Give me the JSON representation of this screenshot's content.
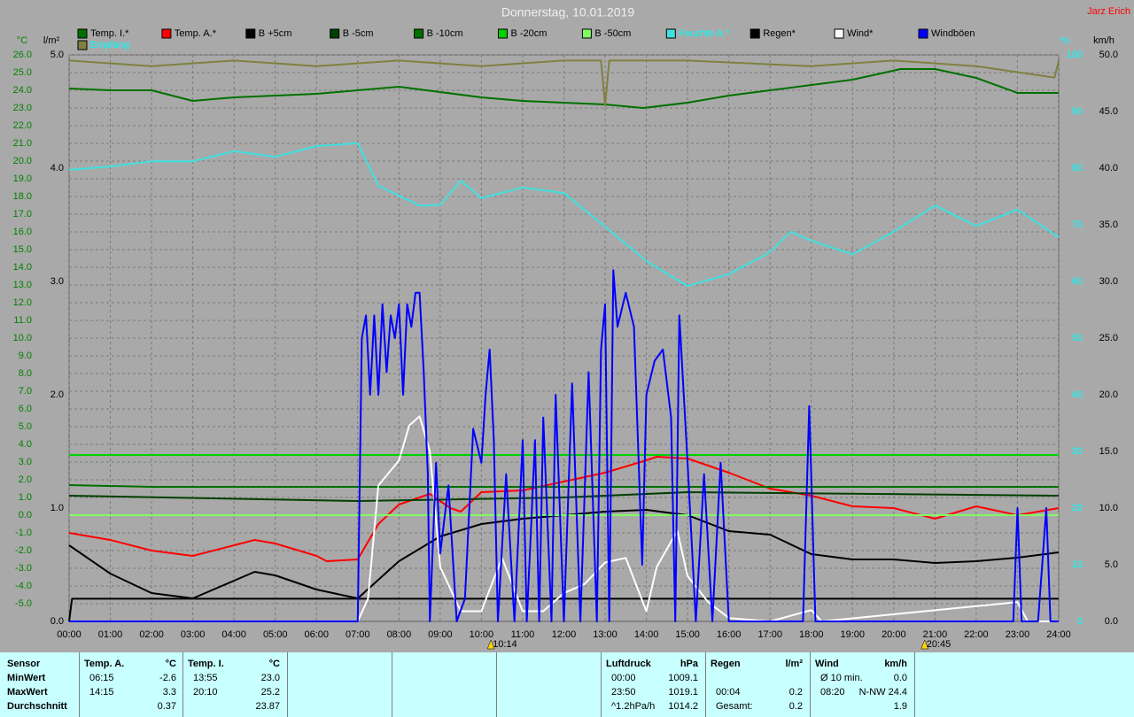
{
  "chart_data": {
    "type": "line",
    "title": "Donnerstag, 10.01.2019",
    "author": "Jarz Erich",
    "y_label": "°C",
    "rain_label": "l/m²",
    "y2_label": "%",
    "y3_label": "km/h",
    "xlim": [
      0,
      24
    ],
    "xticks": [
      {
        "value": 0,
        "label": "00:00"
      },
      {
        "value": 1,
        "label": "01:00"
      },
      {
        "value": 2,
        "label": "02:00"
      },
      {
        "value": 3,
        "label": "03:00"
      },
      {
        "value": 4,
        "label": "04:00"
      },
      {
        "value": 5,
        "label": "05:00"
      },
      {
        "value": 6,
        "label": "06:00"
      },
      {
        "value": 7,
        "label": "07:00"
      },
      {
        "value": 8,
        "label": "08:00"
      },
      {
        "value": 9,
        "label": "09:00"
      },
      {
        "value": 10,
        "label": "10:00"
      },
      {
        "value": 11,
        "label": "11:00"
      },
      {
        "value": 12,
        "label": "12:00"
      },
      {
        "value": 13,
        "label": "13:00"
      },
      {
        "value": 14,
        "label": "14:00"
      },
      {
        "value": 15,
        "label": "15:00"
      },
      {
        "value": 16,
        "label": "16:00"
      },
      {
        "value": 17,
        "label": "17:00"
      },
      {
        "value": 18,
        "label": "18:00"
      },
      {
        "value": 19,
        "label": "19:00"
      },
      {
        "value": 20,
        "label": "20:00"
      },
      {
        "value": 21,
        "label": "21:00"
      },
      {
        "value": 22,
        "label": "22:00"
      },
      {
        "value": 23,
        "label": "23:00"
      },
      {
        "value": 24,
        "label": "24:00"
      }
    ],
    "ylim": [
      -6,
      26
    ],
    "yticks": [
      {
        "value": 26,
        "label": "26.0"
      },
      {
        "value": 25,
        "label": "25.0"
      },
      {
        "value": 24,
        "label": "24.0"
      },
      {
        "value": 23,
        "label": "23.0"
      },
      {
        "value": 22,
        "label": "22.0"
      },
      {
        "value": 21,
        "label": "21.0"
      },
      {
        "value": 20,
        "label": "20.0"
      },
      {
        "value": 19,
        "label": "19.0"
      },
      {
        "value": 18,
        "label": "18.0"
      },
      {
        "value": 17,
        "label": "17.0"
      },
      {
        "value": 16,
        "label": "16.0"
      },
      {
        "value": 15,
        "label": "15.0"
      },
      {
        "value": 14,
        "label": "14.0"
      },
      {
        "value": 13,
        "label": "13.0"
      },
      {
        "value": 12,
        "label": "12.0"
      },
      {
        "value": 11,
        "label": "11.0"
      },
      {
        "value": 10,
        "label": "10.0"
      },
      {
        "value": 9,
        "label": "9.0"
      },
      {
        "value": 8,
        "label": "8.0"
      },
      {
        "value": 7,
        "label": "7.0"
      },
      {
        "value": 6,
        "label": "6.0"
      },
      {
        "value": 5,
        "label": "5.0"
      },
      {
        "value": 4,
        "label": "4.0"
      },
      {
        "value": 3,
        "label": "3.0"
      },
      {
        "value": 2,
        "label": "2.0"
      },
      {
        "value": 1,
        "label": "1.0"
      },
      {
        "value": 0,
        "label": "0.0"
      },
      {
        "value": -1,
        "label": "-1.0"
      },
      {
        "value": -2,
        "label": "-2.0"
      },
      {
        "value": -3,
        "label": "-3.0"
      },
      {
        "value": -4,
        "label": "-4.0"
      },
      {
        "value": -5,
        "label": "-5.0"
      }
    ],
    "rain_lim": [
      0,
      5
    ],
    "rain_ticks": [
      {
        "value": 5,
        "label": "5.0"
      },
      {
        "value": 4,
        "label": "4.0"
      },
      {
        "value": 3,
        "label": "3.0"
      },
      {
        "value": 2,
        "label": "2.0"
      },
      {
        "value": 1,
        "label": "1.0"
      },
      {
        "value": 0,
        "label": "0.0"
      }
    ],
    "y2lim": [
      0,
      100
    ],
    "y2ticks": [
      100,
      90,
      80,
      70,
      60,
      50,
      40,
      30,
      20,
      10,
      0
    ],
    "y3lim": [
      0,
      50
    ],
    "y3ticks": [
      {
        "value": 50,
        "label": "50.0"
      },
      {
        "value": 45,
        "label": "45.0"
      },
      {
        "value": 40,
        "label": "40.0"
      },
      {
        "value": 35,
        "label": "35.0"
      },
      {
        "value": 30,
        "label": "30.0"
      },
      {
        "value": 25,
        "label": "25.0"
      },
      {
        "value": 20,
        "label": "20.0"
      },
      {
        "value": 15,
        "label": "15.0"
      },
      {
        "value": 10,
        "label": "10.0"
      },
      {
        "value": 5,
        "label": "5.0"
      },
      {
        "value": 0,
        "label": "0.0"
      }
    ],
    "grid": true,
    "series": [
      {
        "name": "Temp. I.*",
        "color": "#007000",
        "axis": "y",
        "x": [
          0,
          1,
          2,
          3,
          4,
          5,
          6,
          7,
          8,
          9,
          10,
          11,
          12,
          13,
          13.92,
          15,
          16,
          17,
          18,
          19,
          20.17,
          21,
          22,
          23,
          24
        ],
        "values": [
          24.1,
          24.0,
          24.0,
          23.4,
          23.6,
          23.7,
          23.8,
          24.0,
          24.2,
          23.9,
          23.6,
          23.4,
          23.3,
          23.2,
          23.0,
          23.3,
          23.7,
          24.0,
          24.3,
          24.6,
          25.2,
          25.2,
          24.7,
          23.85,
          23.85
        ]
      },
      {
        "name": "Temp. A.*",
        "color": "#ff0000",
        "axis": "y",
        "x": [
          0,
          1,
          2,
          3,
          4,
          4.5,
          5,
          6,
          6.25,
          7,
          7.5,
          8,
          8.75,
          9.25,
          9.5,
          10,
          11,
          12,
          13,
          14,
          14.25,
          15,
          16,
          17,
          18,
          19,
          20,
          21,
          22,
          23,
          24
        ],
        "values": [
          -1.0,
          -1.4,
          -2.0,
          -2.3,
          -1.7,
          -1.4,
          -1.6,
          -2.3,
          -2.6,
          -2.5,
          -0.5,
          0.6,
          1.2,
          0.4,
          0.2,
          1.3,
          1.4,
          1.9,
          2.4,
          3.1,
          3.3,
          3.2,
          2.4,
          1.5,
          1.1,
          0.5,
          0.4,
          -0.2,
          0.5,
          0.0,
          0.4
        ]
      },
      {
        "name": "B +5cm",
        "color": "#000000",
        "axis": "y",
        "x": [
          0,
          1,
          2,
          3,
          4,
          4.5,
          5,
          6,
          7,
          8,
          9,
          10,
          11,
          12,
          13,
          14,
          15,
          16,
          17,
          18,
          19,
          20,
          21,
          22,
          23,
          24
        ],
        "values": [
          -1.7,
          -3.3,
          -4.4,
          -4.7,
          -3.7,
          -3.2,
          -3.4,
          -4.2,
          -4.7,
          -2.6,
          -1.2,
          -0.5,
          -0.2,
          0.0,
          0.2,
          0.3,
          0.0,
          -0.9,
          -1.1,
          -2.2,
          -2.5,
          -2.5,
          -2.7,
          -2.6,
          -2.4,
          -2.1
        ]
      },
      {
        "name": "B -5cm",
        "color": "#004000",
        "axis": "y",
        "x": [
          0,
          7,
          12,
          15,
          24
        ],
        "values": [
          1.1,
          0.8,
          1.0,
          1.3,
          1.1
        ]
      },
      {
        "name": "B -10cm",
        "color": "#007000",
        "axis": "y",
        "x": [
          0,
          2,
          24
        ],
        "values": [
          1.7,
          1.6,
          1.6
        ]
      },
      {
        "name": "B -20cm",
        "color": "#00d000",
        "axis": "y",
        "x": [
          0,
          24
        ],
        "values": [
          3.4,
          3.4
        ]
      },
      {
        "name": "B -50cm",
        "color": "#80ff60",
        "axis": "y",
        "x": [
          0,
          24
        ],
        "values": [
          0.0,
          0.0
        ]
      },
      {
        "name": "Feuchte A.*",
        "color": "#40e0e0",
        "label_color": "#00ffff",
        "axis": "y2",
        "x": [
          0,
          1,
          2,
          3,
          4,
          5,
          6,
          7,
          7.5,
          8.5,
          9,
          9.5,
          10,
          11,
          12,
          13,
          14,
          15,
          16,
          17,
          17.5,
          18,
          19,
          20,
          21,
          22,
          23,
          24
        ],
        "values": [
          79.7,
          80.3,
          81.2,
          81.2,
          83.0,
          82.0,
          83.9,
          84.4,
          76.9,
          73.4,
          73.5,
          77.8,
          74.7,
          76.6,
          75.6,
          69.7,
          63.6,
          59.2,
          61.3,
          65.2,
          68.8,
          67.2,
          64.8,
          68.8,
          73.4,
          69.8,
          72.7,
          67.8
        ]
      },
      {
        "name": "Regen*",
        "color": "#000000",
        "axis": "rain",
        "x": [
          0,
          0.07,
          24
        ],
        "values": [
          0.0,
          0.2,
          0.2
        ]
      },
      {
        "name": "Wind*",
        "color": "#ffffff",
        "axis": "y3",
        "x": [
          0,
          7,
          7.25,
          7.5,
          8,
          8.25,
          8.5,
          8.75,
          9,
          9.5,
          10,
          10.25,
          10.5,
          11,
          11.5,
          12,
          12.5,
          13,
          13.5,
          14,
          14.25,
          14.75,
          15,
          15.5,
          16,
          17,
          18,
          18.25,
          23,
          23.25,
          24
        ],
        "values": [
          0,
          0,
          2,
          12,
          14.2,
          17.3,
          18.1,
          15,
          4.8,
          0.9,
          0.9,
          3.3,
          5.6,
          0.9,
          0.9,
          2.5,
          3.3,
          5.2,
          5.6,
          0.9,
          4.8,
          8,
          4,
          1.7,
          0.3,
          0,
          1,
          0,
          1.7,
          0,
          0
        ]
      },
      {
        "name": "Windböen",
        "color": "#0000ff",
        "axis": "y3",
        "x": [
          0,
          7.0,
          7.1,
          7.2,
          7.3,
          7.4,
          7.5,
          7.6,
          7.7,
          7.8,
          7.9,
          8.0,
          8.1,
          8.2,
          8.3,
          8.4,
          8.5,
          8.6,
          8.7,
          8.75,
          8.9,
          9.0,
          9.2,
          9.4,
          9.6,
          9.8,
          10.0,
          10.1,
          10.2,
          10.3,
          10.4,
          10.6,
          10.8,
          11.0,
          11.1,
          11.3,
          11.4,
          11.5,
          11.7,
          11.8,
          12.0,
          12.2,
          12.4,
          12.6,
          12.8,
          12.9,
          13.0,
          13.1,
          13.2,
          13.3,
          13.5,
          13.7,
          13.9,
          14.0,
          14.2,
          14.4,
          14.6,
          14.7,
          14.8,
          15.0,
          15.2,
          15.4,
          15.6,
          15.8,
          16.0,
          17.8,
          17.95,
          18.1,
          22.9,
          23.0,
          23.1,
          23.5,
          23.6,
          23.7,
          23.8,
          24
        ],
        "values": [
          0,
          0,
          25,
          27,
          20,
          27,
          20,
          28,
          22,
          27,
          25,
          28,
          20,
          28,
          26,
          29,
          29,
          22,
          13,
          0,
          14,
          6,
          12,
          0,
          2,
          17,
          14,
          20,
          24,
          16,
          0,
          13,
          0,
          16,
          0,
          16,
          0,
          18,
          0,
          20,
          0,
          21,
          0,
          22,
          0,
          24,
          28,
          0,
          31,
          26,
          29,
          26,
          5,
          20,
          23,
          24,
          18,
          0,
          27,
          14,
          0,
          13,
          0,
          14,
          0,
          0,
          19,
          0,
          0,
          10,
          0,
          0,
          5,
          10,
          0,
          0
        ]
      },
      {
        "name": "Empfang",
        "color": "#808040",
        "label_color": "#00ffff",
        "axis": "y2",
        "x": [
          0,
          2,
          4,
          6,
          8,
          10,
          12,
          12.9,
          13,
          13.1,
          15,
          18,
          20,
          22,
          23.9,
          24
        ],
        "values": [
          99,
          98,
          99,
          98,
          99,
          98,
          99,
          99,
          91,
          99,
          99,
          98,
          99,
          98,
          96,
          99
        ]
      }
    ],
    "annotations": [
      {
        "x": 10.23,
        "text": "10:14"
      },
      {
        "x": 20.75,
        "text": "20:45"
      }
    ]
  },
  "summary": {
    "row_labels": [
      "Sensor",
      "MinWert",
      "MaxWert",
      "Durchschnitt"
    ],
    "groups": [
      {
        "name": "Temp. A.",
        "unit": "°C",
        "rows": [
          [
            "06:15",
            "-2.6"
          ],
          [
            "14:15",
            "3.3"
          ],
          [
            null,
            "0.37"
          ]
        ]
      },
      {
        "name": "Temp. I.",
        "unit": "°C",
        "rows": [
          [
            "13:55",
            "23.0"
          ],
          [
            "20:10",
            "25.2"
          ],
          [
            null,
            "23.87"
          ]
        ]
      },
      {
        "name": "Luftdruck",
        "unit": "hPa",
        "rows": [
          [
            "00:00",
            "1009.1"
          ],
          [
            "23:50",
            "1019.1"
          ],
          [
            "^1.2hPa/h",
            "1014.2"
          ]
        ]
      },
      {
        "name": "Regen",
        "unit": "l/m²",
        "rows": [
          [
            null,
            null
          ],
          [
            "00:04",
            "0.2"
          ],
          [
            "Gesamt:",
            "0.2"
          ]
        ]
      },
      {
        "name": "Wind",
        "unit": "km/h",
        "rows": [
          [
            "Ø 10 min.",
            "0.0"
          ],
          [
            "08:20",
            "N-NW 24.4"
          ],
          [
            null,
            "1.9"
          ]
        ]
      }
    ]
  }
}
